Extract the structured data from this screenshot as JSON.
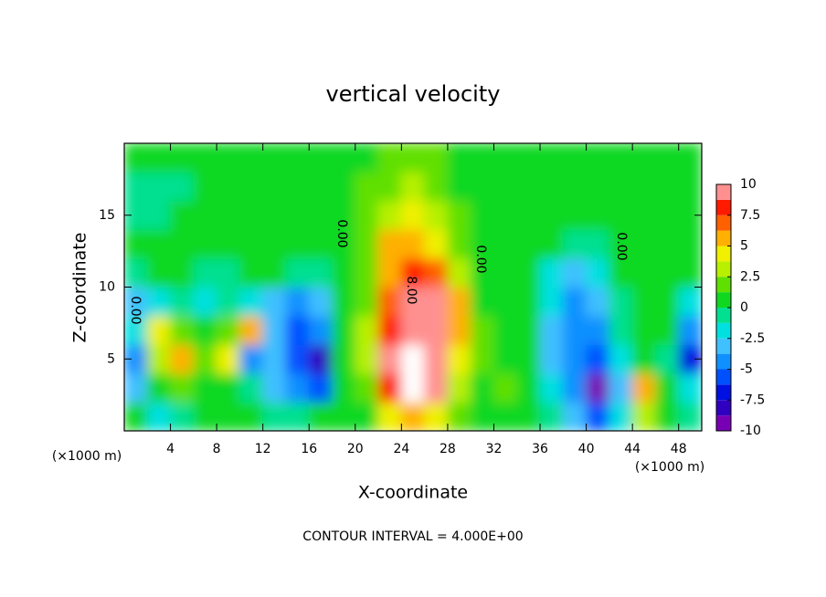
{
  "chart_data": {
    "type": "contour",
    "title": "vertical velocity",
    "xlabel": "X-coordinate",
    "ylabel": "Z-coordinate",
    "xunit": "(×1000 m)",
    "yunit": "(×1000 m)",
    "footnote": "CONTOUR INTERVAL = 4.000E+00",
    "annotations": [
      "0.00",
      "0.00",
      "0.00",
      "0.00",
      "8.00"
    ],
    "xlim": [
      0,
      50
    ],
    "ylim": [
      0,
      20
    ],
    "xticks": [
      4,
      8,
      12,
      16,
      20,
      24,
      28,
      32,
      36,
      40,
      44,
      48
    ],
    "yticks": [
      5,
      10,
      15
    ],
    "x": [
      1,
      3,
      5,
      7,
      9,
      11,
      13,
      15,
      17,
      19,
      21,
      23,
      25,
      27,
      29,
      31,
      33,
      35,
      37,
      39,
      41,
      43,
      45,
      47,
      49
    ],
    "y": [
      1,
      3,
      5,
      7,
      9,
      11,
      13,
      15,
      17,
      19
    ],
    "z": [
      [
        0,
        -2,
        -1,
        0,
        0,
        0,
        -1,
        -1,
        0,
        0,
        1,
        4,
        5,
        4,
        2,
        1,
        1,
        0,
        -1,
        -3,
        -6,
        -2,
        3,
        0,
        -1
      ],
      [
        -3,
        0,
        2,
        1,
        0,
        -1,
        -3,
        -4,
        -6,
        0,
        2,
        8,
        11,
        9,
        3,
        1,
        2,
        1,
        -2,
        -5,
        -9,
        -3,
        6,
        0,
        -2
      ],
      [
        -5,
        3,
        5,
        2,
        4,
        -5,
        -3,
        -6,
        -8,
        0,
        3,
        9,
        11,
        10,
        4,
        2,
        1,
        0,
        -3,
        -5,
        -6,
        -2,
        1,
        -1,
        -7
      ],
      [
        -2,
        4,
        2,
        1,
        2,
        5,
        -3,
        -6,
        -5,
        0,
        3,
        8,
        10,
        10,
        5,
        2,
        1,
        0,
        -3,
        -4,
        -4,
        -1,
        0,
        0,
        -5
      ],
      [
        -3,
        -2,
        -1,
        -2,
        -1,
        -2,
        -3,
        -4,
        -3,
        0,
        2,
        7,
        9,
        9,
        5,
        1,
        1,
        0,
        -2,
        -4,
        -3,
        -1,
        0,
        0,
        -2
      ],
      [
        -1,
        0,
        0,
        -1,
        -1,
        0,
        0,
        -1,
        -1,
        0,
        2,
        6,
        8,
        7,
        3,
        1,
        1,
        0,
        -2,
        -3,
        -2,
        0,
        0,
        0,
        0
      ],
      [
        0,
        0,
        1,
        0,
        0,
        1,
        1,
        0,
        0,
        0,
        2,
        5,
        6,
        4,
        2,
        1,
        1,
        0,
        0,
        -1,
        -1,
        0,
        0,
        0,
        0
      ],
      [
        -1,
        -1,
        0,
        0,
        0,
        1,
        1,
        1,
        0,
        1,
        2,
        3,
        4,
        3,
        2,
        1,
        0,
        0,
        0,
        0,
        0,
        0,
        0,
        0,
        0
      ],
      [
        -1,
        -1,
        -1,
        0,
        0,
        0,
        1,
        1,
        1,
        1,
        2,
        2,
        3,
        2,
        1,
        1,
        0,
        0,
        0,
        0,
        0,
        0,
        0,
        0,
        0
      ],
      [
        0,
        0,
        0,
        0,
        0,
        0,
        1,
        1,
        1,
        1,
        1,
        2,
        2,
        2,
        1,
        1,
        1,
        0,
        0,
        0,
        0,
        0,
        0,
        0,
        0
      ]
    ],
    "zlim": [
      -10,
      10
    ],
    "colorbar_ticks": [
      10,
      7.5,
      5,
      2.5,
      0,
      -2.5,
      -5,
      -7.5,
      -10
    ],
    "colors": [
      "#7800b4",
      "#3000c0",
      "#0010e0",
      "#0050ff",
      "#1090ff",
      "#40c0ff",
      "#00e0e0",
      "#00e090",
      "#10d820",
      "#60e000",
      "#b8f000",
      "#f0f000",
      "#ffb000",
      "#ff6000",
      "#ff1a00",
      "#ff9090"
    ],
    "over_color": "#ffffff",
    "under_color": "#6000a0"
  }
}
